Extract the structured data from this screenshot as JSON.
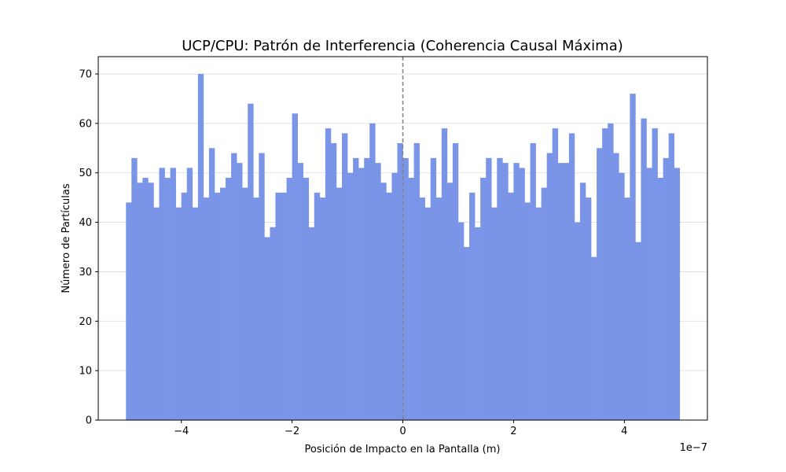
{
  "chart_data": {
    "type": "bar",
    "title": "UCP/CPU: Patrón de Interferencia (Coherencia Causal Máxima)",
    "xlabel": "Posición de Impacto en la Pantalla (m)",
    "ylabel": "Número de Partículas",
    "x_offset_label": "1e−7",
    "x_range": [
      -5e-07,
      5e-07
    ],
    "xlim": [
      -5.5e-07,
      5.5e-07
    ],
    "ylim": [
      0,
      73.5
    ],
    "x_ticks": [
      -4e-07,
      -2e-07,
      0,
      2e-07,
      4e-07
    ],
    "x_tick_labels": [
      "−4",
      "−2",
      "0",
      "2",
      "4"
    ],
    "y_ticks": [
      0,
      10,
      20,
      30,
      40,
      50,
      60,
      70
    ],
    "y_tick_labels": [
      "0",
      "10",
      "20",
      "30",
      "40",
      "50",
      "60",
      "70"
    ],
    "grid": "horizontal",
    "bar_color": "#7a94e8",
    "vline_x": 0,
    "vline_color": "#808080",
    "bins": 100,
    "values": [
      44,
      53,
      48,
      49,
      48,
      43,
      51,
      49,
      51,
      43,
      46,
      51,
      43,
      70,
      45,
      55,
      46,
      47,
      49,
      54,
      52,
      47,
      64,
      45,
      54,
      37,
      39,
      46,
      46,
      49,
      62,
      52,
      49,
      39,
      46,
      45,
      59,
      56,
      47,
      58,
      50,
      53,
      51,
      53,
      60,
      52,
      48,
      46,
      50,
      56,
      53,
      49,
      56,
      45,
      43,
      53,
      45,
      59,
      48,
      56,
      40,
      35,
      46,
      39,
      49,
      53,
      43,
      53,
      52,
      46,
      52,
      51,
      44,
      56,
      43,
      47,
      54,
      59,
      52,
      52,
      58,
      40,
      48,
      45,
      33,
      55,
      59,
      60,
      54,
      50,
      45,
      66,
      36,
      61,
      51,
      59,
      49,
      53,
      58,
      51
    ]
  }
}
